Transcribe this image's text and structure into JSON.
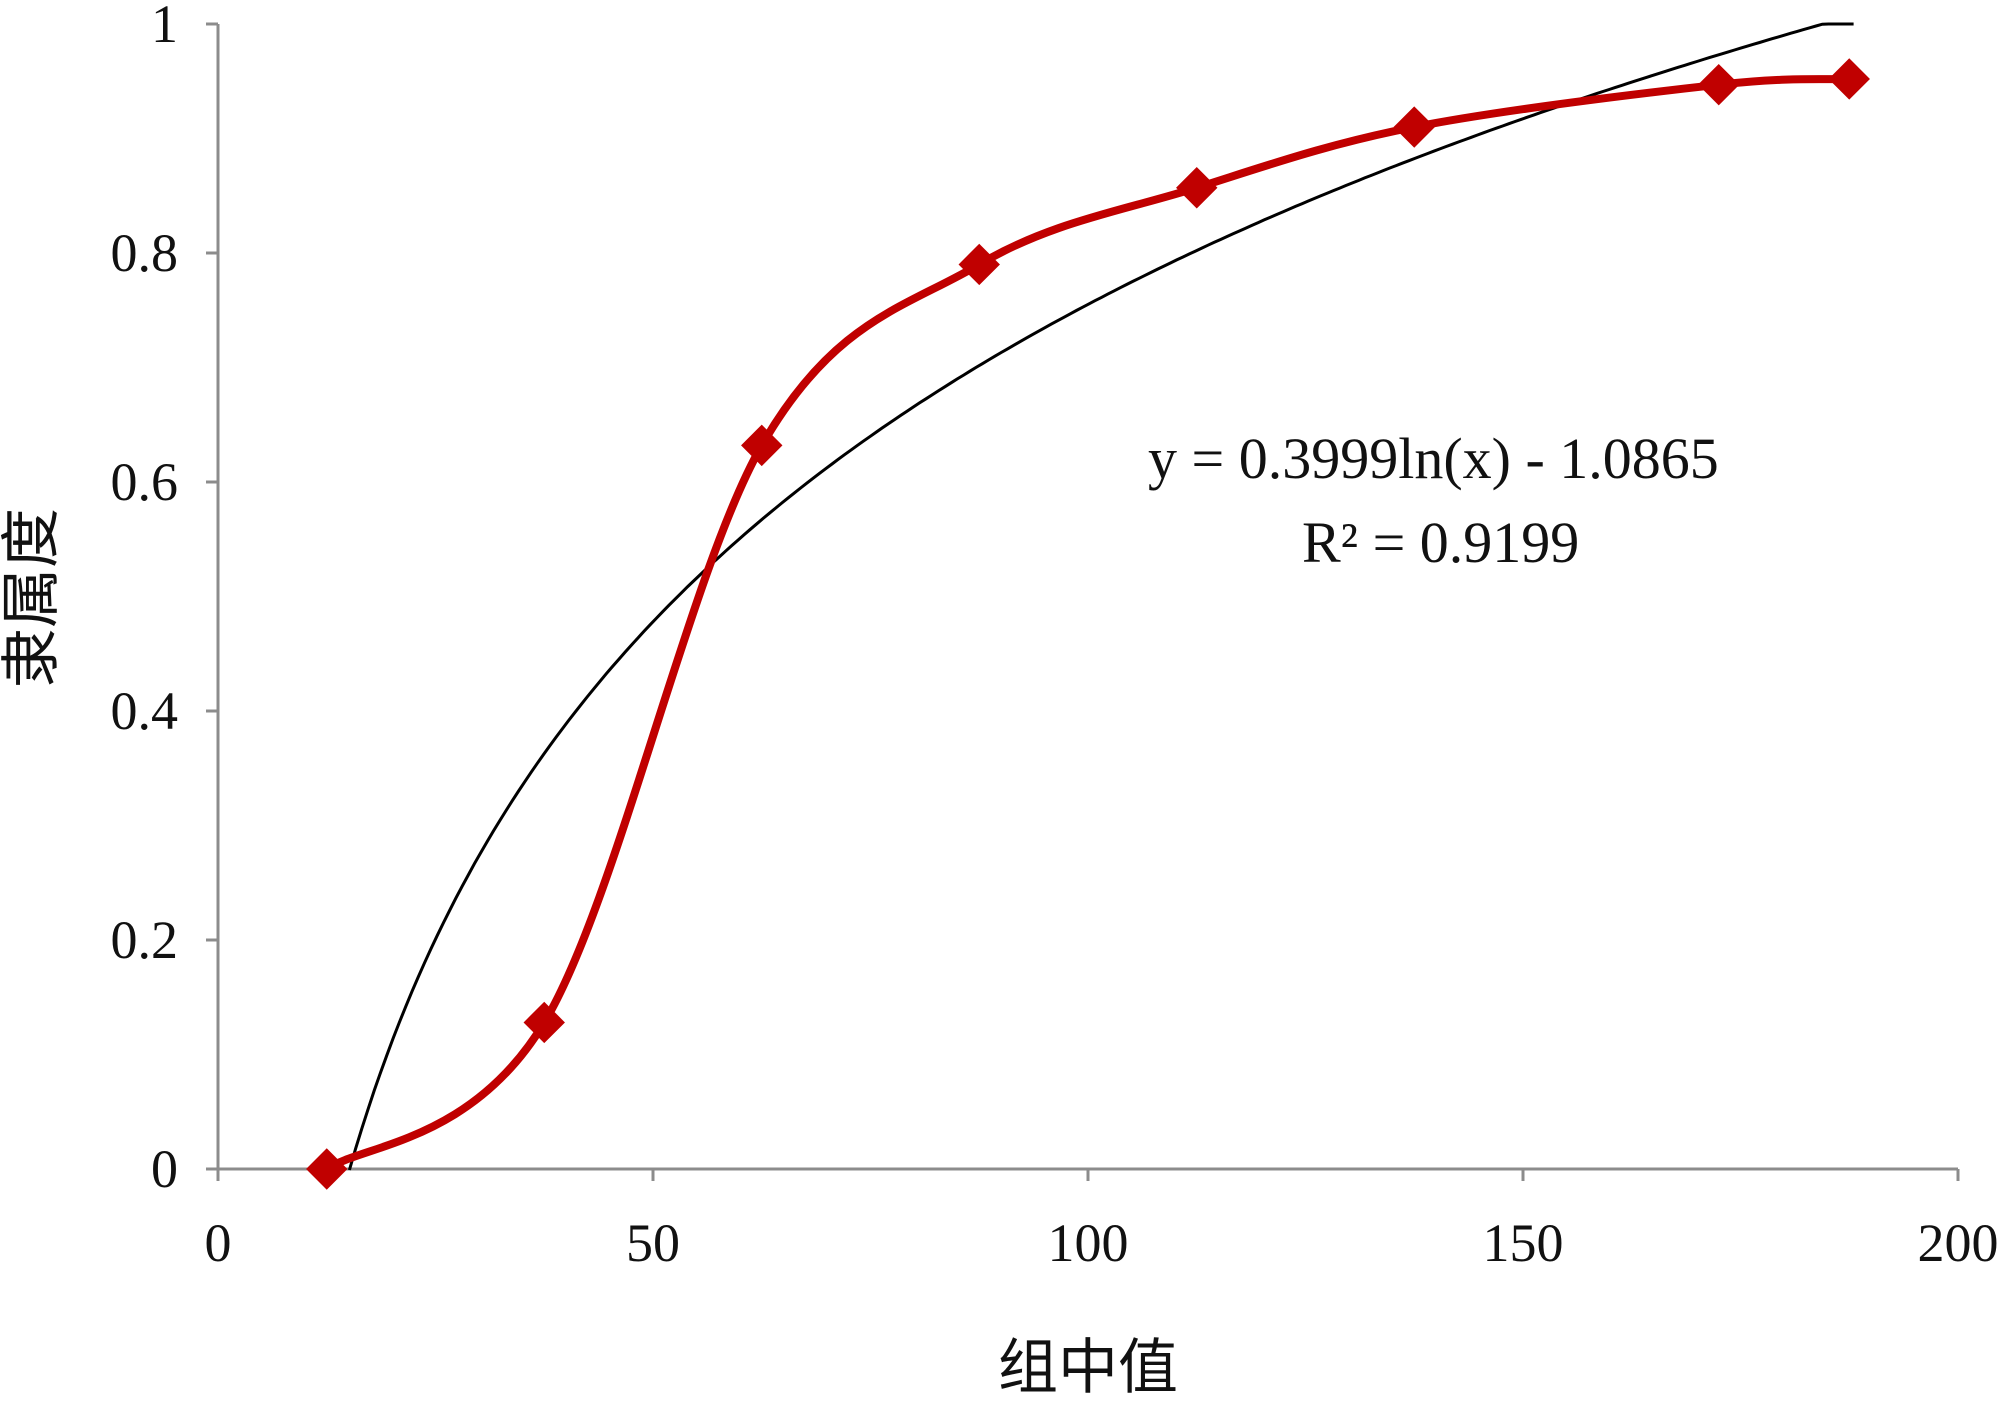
{
  "chart_data": {
    "type": "line",
    "xlabel": "组中值",
    "ylabel": "隶属度",
    "xlim": [
      0,
      200
    ],
    "ylim": [
      0,
      1
    ],
    "x_ticks": [
      "0",
      "50",
      "100",
      "150",
      "200"
    ],
    "y_ticks": [
      "0",
      "0.2",
      "0.4",
      "0.6",
      "0.8",
      "1"
    ],
    "grid": false,
    "legend": "none",
    "series": [
      {
        "style": "smoothed line with diamond markers",
        "color": "#C00000",
        "x": [
          12.5,
          37.5,
          62.5,
          87.5,
          112.5,
          137.5,
          172.5,
          187.5
        ],
        "y": [
          0,
          0.128,
          0.632,
          0.79,
          0.857,
          0.91,
          0.947,
          0.952
        ]
      },
      {
        "style": "logarithmic trendline",
        "color": "#000000",
        "equation": {
          "a": 0.3999,
          "b": -1.0865
        },
        "x_range": [
          15.1,
          188
        ]
      }
    ],
    "annotations": {
      "equation_text": "y = 0.3999ln(x)   - 1.0865",
      "r2_text": "R² = 0.9199"
    }
  }
}
